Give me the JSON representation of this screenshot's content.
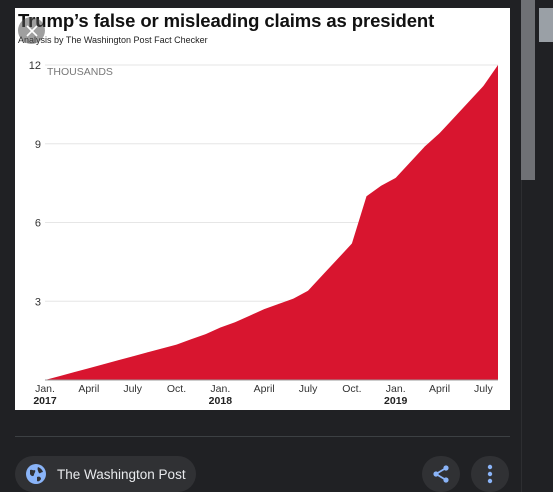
{
  "chart": {
    "title": "Trump’s false or misleading claims as president",
    "subtitle": "Analysis by The Washington Post Fact Checker",
    "unit_label": "THOUSANDS"
  },
  "chart_data": {
    "type": "area",
    "title": "Trump’s false or misleading claims as president",
    "subtitle": "Analysis by The Washington Post Fact Checker",
    "ylabel": "THOUSANDS",
    "xlabel": "",
    "ylim": [
      0,
      12
    ],
    "yticks": [
      3,
      6,
      9,
      12
    ],
    "grid": true,
    "legend": "none",
    "color": "#d8152f",
    "x_tick_labels": [
      {
        "month": "Jan.",
        "year": "2017",
        "date": "2017-01"
      },
      {
        "month": "April",
        "year": "",
        "date": "2017-04"
      },
      {
        "month": "July",
        "year": "",
        "date": "2017-07"
      },
      {
        "month": "Oct.",
        "year": "",
        "date": "2017-10"
      },
      {
        "month": "Jan.",
        "year": "2018",
        "date": "2018-01"
      },
      {
        "month": "April",
        "year": "",
        "date": "2018-04"
      },
      {
        "month": "July",
        "year": "",
        "date": "2018-07"
      },
      {
        "month": "Oct.",
        "year": "",
        "date": "2018-10"
      },
      {
        "month": "Jan.",
        "year": "2019",
        "date": "2019-01"
      },
      {
        "month": "April",
        "year": "",
        "date": "2019-04"
      },
      {
        "month": "July",
        "year": "",
        "date": "2019-07"
      }
    ],
    "series": [
      {
        "x": [
          "2017-01",
          "2017-02",
          "2017-03",
          "2017-04",
          "2017-05",
          "2017-06",
          "2017-07",
          "2017-08",
          "2017-09",
          "2017-10",
          "2017-11",
          "2017-12",
          "2018-01",
          "2018-02",
          "2018-03",
          "2018-04",
          "2018-05",
          "2018-06",
          "2018-07",
          "2018-08",
          "2018-09",
          "2018-10",
          "2018-11",
          "2018-12",
          "2019-01",
          "2019-02",
          "2019-03",
          "2019-04",
          "2019-05",
          "2019-06",
          "2019-07",
          "2019-08"
        ],
        "y": [
          0.0,
          0.15,
          0.3,
          0.45,
          0.6,
          0.75,
          0.9,
          1.05,
          1.2,
          1.35,
          1.55,
          1.75,
          2.0,
          2.2,
          2.45,
          2.7,
          2.9,
          3.1,
          3.4,
          4.0,
          4.6,
          5.2,
          7.0,
          7.4,
          7.7,
          8.3,
          8.9,
          9.4,
          10.0,
          10.6,
          11.2,
          12.0
        ]
      }
    ]
  },
  "source": {
    "label": "The Washington Post"
  },
  "icons": {
    "close": "close-icon",
    "globe": "globe-icon",
    "share": "share-icon",
    "more": "more-vert-icon"
  },
  "colors": {
    "background": "#202124",
    "chip": "#303134",
    "area": "#d8152f"
  }
}
